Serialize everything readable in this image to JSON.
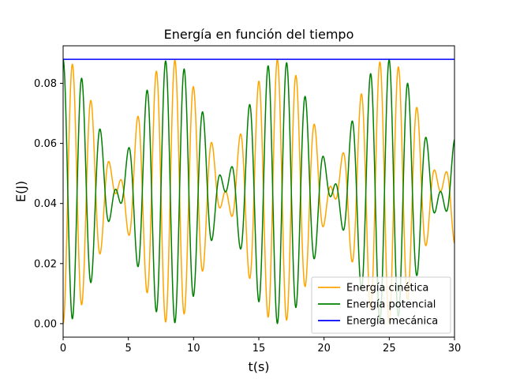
{
  "chart_data": {
    "type": "line",
    "title": "Energía en función del tiempo",
    "xlabel": "t(s)",
    "ylabel": "E(J)",
    "xlim": [
      0,
      30
    ],
    "ylim": [
      -0.0045,
      0.0925
    ],
    "xticks": [
      0,
      5,
      10,
      15,
      20,
      25,
      30
    ],
    "xtick_labels": [
      "0",
      "5",
      "10",
      "15",
      "20",
      "25",
      "30"
    ],
    "yticks": [
      0.0,
      0.02,
      0.04,
      0.06,
      0.08
    ],
    "ytick_labels": [
      "0.00",
      "0.02",
      "0.04",
      "0.06",
      "0.08"
    ],
    "grid": false,
    "legend_position": "lower-right",
    "model": {
      "total_energy": 0.088,
      "carrier_angular_frequency_rad_per_s": 4.4,
      "envelope_angular_frequency_rad_per_s": 0.38,
      "samples": 1201
    },
    "series": [
      {
        "name": "Energía cinética",
        "color": "#ffa500",
        "role": "kinetic"
      },
      {
        "name": "Energía potencial",
        "color": "#008000",
        "role": "potential"
      },
      {
        "name": "Energía mecánica",
        "color": "#0000ff",
        "role": "mechanical",
        "values": [
          0.088,
          0.088
        ]
      }
    ]
  }
}
